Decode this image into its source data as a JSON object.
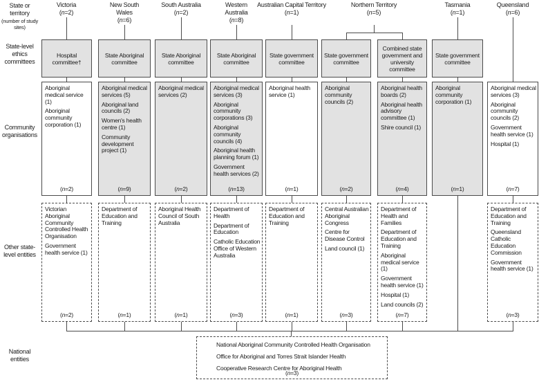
{
  "row_labels": {
    "state": "State or territory",
    "state_sub": "(number of study sites)",
    "ethics": "State-level ethics committees",
    "community": "Community organisations",
    "other": "Other state-level entities",
    "national": "National entities"
  },
  "headers": [
    {
      "label": "Victoria",
      "n": "(n=2)"
    },
    {
      "label": "New South Wales",
      "n": "(n=6)"
    },
    {
      "label": "South Australia",
      "n": "(n=2)"
    },
    {
      "label": "Western Australia",
      "n": "(n=8)"
    },
    {
      "label": "Australian Capital Territory",
      "n": "(n=1)"
    },
    {
      "label": "Northern Territory",
      "n": "(n=5)"
    },
    {
      "label": "Tasmania",
      "n": "(n=1)"
    },
    {
      "label": "Queensland",
      "n": "(n=6)"
    }
  ],
  "columns": [
    {
      "ethics": "Hospital committee†",
      "community": {
        "shaded": false,
        "items": [
          "Aboriginal medical service (1)",
          "Aboriginal community corporation (1)"
        ],
        "n": "(n=2)"
      },
      "other": {
        "items": [
          "Victorian Aboriginal Community Controlled Health Organisation",
          "Government health service (1)"
        ],
        "n": "(n=2)"
      }
    },
    {
      "ethics": "State Aboriginal committee",
      "community": {
        "shaded": true,
        "items": [
          "Aboriginal medical services (5)",
          "Aboriginal land councils (2)",
          "Women's health centre (1)",
          "Community development project (1)"
        ],
        "n": "(n=9)"
      },
      "other": {
        "items": [
          "Department of Education and Training"
        ],
        "n": "(n=1)"
      }
    },
    {
      "ethics": "State Aboriginal committee",
      "community": {
        "shaded": true,
        "items": [
          "Aboriginal medical services (2)"
        ],
        "n": "(n=2)"
      },
      "other": {
        "items": [
          "Aboriginal Health Council of South Australia"
        ],
        "n": "(n=1)"
      }
    },
    {
      "ethics": "State Aboriginal committee",
      "community": {
        "shaded": true,
        "items": [
          "Aboriginal medical services (3)",
          "Aboriginal community corporations (3)",
          "Aboriginal community councils (4)",
          "Aboriginal health planning forum (1)",
          "Government health services (2)"
        ],
        "n": "(n=13)"
      },
      "other": {
        "items": [
          "Department of Health",
          "Department of Education",
          "Catholic Education Office of Western Australia"
        ],
        "n": "(n=3)"
      }
    },
    {
      "ethics": "State government committee",
      "community": {
        "shaded": false,
        "items": [
          "Aboriginal health service (1)"
        ],
        "n": "(n=1)"
      },
      "other": {
        "items": [
          "Department of Education and Training"
        ],
        "n": "(n=1)"
      }
    },
    {
      "ethics": "State government committee",
      "community": {
        "shaded": true,
        "items": [
          "Aboriginal community councils (2)"
        ],
        "n": "(n=2)"
      },
      "other": {
        "items": [
          "Central Australian Aboriginal Congress",
          "Centre for Disease Control",
          "Land council (1)"
        ],
        "n": "(n=3)"
      }
    },
    {
      "ethics": "Combined state government and university committee",
      "community": {
        "shaded": true,
        "items": [
          "Aboriginal health boards (2)",
          "Aboriginal health advisory committee (1)",
          "Shire council (1)"
        ],
        "n": "(n=4)"
      },
      "other": {
        "items": [
          "Department of Health and Families",
          "Department of Education and Training",
          "Aboriginal medical service (1)",
          "Government health service (1)",
          "Hospital (1)",
          "Land councils (2)"
        ],
        "n": "(n=7)"
      }
    },
    {
      "ethics": "State government committee",
      "community": {
        "shaded": true,
        "items": [
          "Aboriginal community corporation (1)"
        ],
        "n": "(n=1)"
      },
      "other": null
    },
    {
      "ethics": null,
      "community": {
        "shaded": false,
        "items": [
          "Aboriginal medical services (3)",
          "Aboriginal community councils (2)",
          "Government health service (1)",
          "Hospital (1)"
        ],
        "n": "(n=7)"
      },
      "other": {
        "items": [
          "Department of Education and Training",
          "Queensland Catholic Education Commission",
          "Government health service (1)"
        ],
        "n": "(n=3)"
      }
    }
  ],
  "national": {
    "items": [
      "National Aboriginal Community Controlled Health Organisation",
      "Office for Aboriginal and Torres Strait Islander Health",
      "Cooperative Research Centre for Aboriginal Health"
    ],
    "n": "(n=3)"
  },
  "colors": {
    "box_fill": "#e2e2e2",
    "line": "#4a4a4a",
    "text": "#1a1a1a",
    "background": "#ffffff"
  }
}
